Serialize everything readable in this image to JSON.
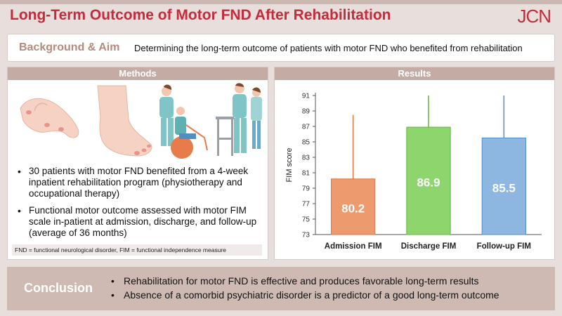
{
  "header": {
    "title": "Long-Term Outcome of Motor FND After Rehabilitation",
    "logo": "JCN"
  },
  "background": {
    "label": "Background & Aim",
    "text": "Determining the long-term outcome of patients with motor FND who benefited from rehabilitation"
  },
  "methods": {
    "heading": "Methods",
    "bullets": [
      "30 patients with motor FND benefited from a 4-week inpatient rehabilitation program (physiotherapy and occupational therapy)",
      "Functional motor outcome assessed with motor FIM scale in-patient at admission, discharge, and follow-up (average of 36 months)"
    ],
    "footnote": "FND = functional neurological disorder, FIM = functional independence measure"
  },
  "results": {
    "heading": "Results"
  },
  "chart_data": {
    "type": "bar",
    "categories": [
      "Admission FIM",
      "Discharge FIM",
      "Follow-up FIM"
    ],
    "values": [
      80.2,
      86.9,
      85.5
    ],
    "error_upper": [
      88.5,
      91.0,
      91.0
    ],
    "value_labels": [
      "80.2",
      "86.9",
      "85.5"
    ],
    "colors": [
      "#ee9a6f",
      "#8fd56e",
      "#8db7e1"
    ],
    "error_colors": [
      "#e4733f",
      "#5cb83a",
      "#4f8fd0"
    ],
    "title": "",
    "xlabel": "",
    "ylabel": "FIM score",
    "ylim": [
      73,
      91
    ],
    "yticks": [
      73,
      75,
      77,
      79,
      81,
      83,
      85,
      87,
      89,
      91
    ],
    "grid": false
  },
  "conclusion": {
    "label": "Conclusion",
    "items": [
      "Rehabilitation for motor FND is effective and produces favorable long-term results",
      "Absence of a comorbid psychiatric disorder is a predictor of a good long-term outcome"
    ]
  },
  "icons": {
    "hand": "hand-illustration-icon",
    "foot": "foot-illustration-icon",
    "therapy_ball": "therapist-ball-illustration-icon",
    "walker": "therapist-walker-illustration-icon"
  }
}
